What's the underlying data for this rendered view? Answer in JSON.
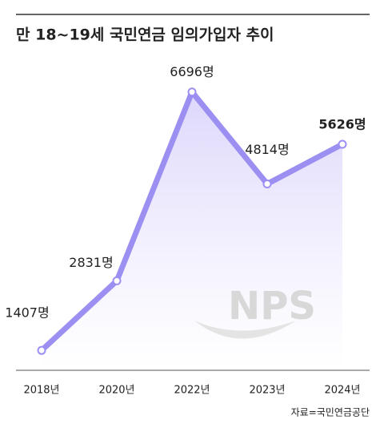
{
  "chart_data": {
    "type": "line",
    "title": "만 18~19세 국민연금 임의가입자 추이",
    "categories": [
      "2018년",
      "2020년",
      "2022년",
      "2023년",
      "2024년"
    ],
    "values": [
      1407,
      2831,
      6696,
      4814,
      5626
    ],
    "value_labels": [
      "1407명",
      "2831명",
      "6696명",
      "4814명",
      "5626명"
    ],
    "color": "#9b8ff2",
    "ylim": [
      1000,
      7200
    ],
    "source": "자료=국민연금공단",
    "watermark": "NPS"
  }
}
